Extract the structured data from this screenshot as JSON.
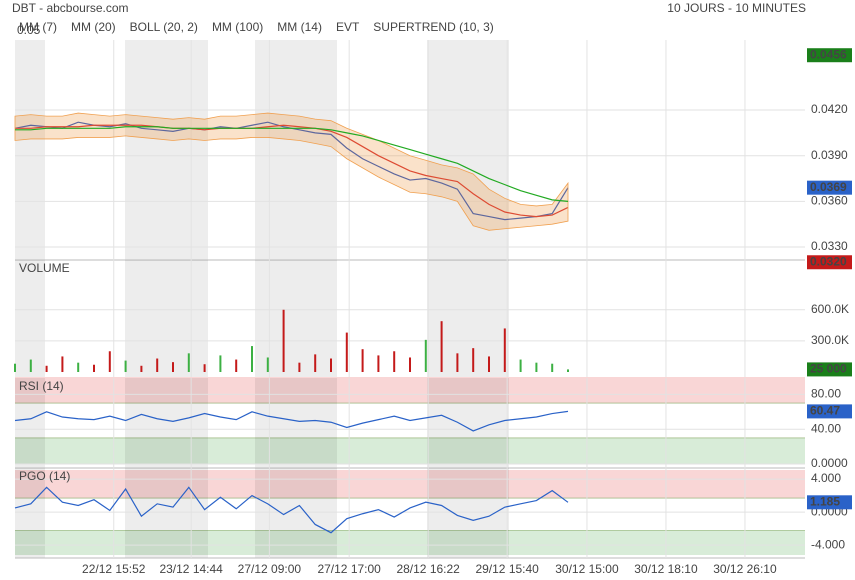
{
  "header": {
    "title": "DBT - abcbourse.com",
    "period": "10 JOURS - 10 MINUTES"
  },
  "chart_data": [
    {
      "type": "line",
      "corner_label": "0.05",
      "ylim": [
        0.03228,
        0.0466
      ],
      "yticks": [
        {
          "value": 0.033,
          "label": "0.0330"
        },
        {
          "value": 0.036,
          "label": "0.0360"
        },
        {
          "value": 0.039,
          "label": "0.0390"
        },
        {
          "value": 0.042,
          "label": "0.0420"
        }
      ],
      "badges": [
        {
          "value": 0.0456,
          "label": "0.0456",
          "color": "#1a7f1a"
        },
        {
          "value": 0.0369,
          "label": "0.0369",
          "color": "#2a62c8"
        },
        {
          "value": 0.032,
          "label": "0.0320",
          "color": "#c41a1a"
        }
      ],
      "series": [
        {
          "name": "MM (7)",
          "color": "#1f4fbf",
          "values": [
            0.0408,
            0.041,
            0.0409,
            0.0408,
            0.0412,
            0.041,
            0.0409,
            0.0411,
            0.0408,
            0.0407,
            0.0406,
            0.0408,
            0.0407,
            0.0409,
            0.0408,
            0.041,
            0.0412,
            0.0409,
            0.0407,
            0.0405,
            0.0404,
            0.0395,
            0.0388,
            0.0383,
            0.0378,
            0.0374,
            0.0375,
            0.0372,
            0.0368,
            0.0352,
            0.035,
            0.0348,
            0.0349,
            0.035,
            0.0352,
            0.0369
          ]
        },
        {
          "name": "MM (20)",
          "color": "#d62728",
          "values": [
            0.0408,
            0.0408,
            0.0409,
            0.0409,
            0.0409,
            0.041,
            0.041,
            0.041,
            0.041,
            0.0409,
            0.0408,
            0.0408,
            0.0407,
            0.0408,
            0.0408,
            0.0408,
            0.0409,
            0.041,
            0.0409,
            0.0408,
            0.0406,
            0.0402,
            0.0396,
            0.039,
            0.0385,
            0.038,
            0.0377,
            0.0375,
            0.0373,
            0.0365,
            0.0358,
            0.0353,
            0.0351,
            0.035,
            0.0351,
            0.0356
          ]
        },
        {
          "name": "BOLL (20, 2)",
          "color": "#f0a050",
          "upper": [
            0.0416,
            0.0417,
            0.0416,
            0.0416,
            0.0418,
            0.0417,
            0.0416,
            0.0417,
            0.0416,
            0.0415,
            0.0414,
            0.0415,
            0.0414,
            0.0416,
            0.0416,
            0.0417,
            0.0418,
            0.0417,
            0.0416,
            0.0414,
            0.0413,
            0.0408,
            0.0404,
            0.04,
            0.0395,
            0.039,
            0.0387,
            0.0384,
            0.0382,
            0.0378,
            0.0368,
            0.0362,
            0.0358,
            0.0357,
            0.0358,
            0.0372
          ],
          "lower": [
            0.04,
            0.0401,
            0.0401,
            0.0401,
            0.0402,
            0.0402,
            0.0402,
            0.0403,
            0.0402,
            0.0401,
            0.04,
            0.0401,
            0.04,
            0.0401,
            0.0401,
            0.0402,
            0.0402,
            0.0401,
            0.04,
            0.0398,
            0.0396,
            0.0388,
            0.0382,
            0.0376,
            0.0371,
            0.0366,
            0.0365,
            0.0363,
            0.036,
            0.0344,
            0.0341,
            0.0342,
            0.0343,
            0.0344,
            0.0345,
            0.0347
          ]
        },
        {
          "name": "MM (100)",
          "color": "#22aa22",
          "values": [
            0.0407,
            0.0407,
            0.0408,
            0.0408,
            0.0408,
            0.0408,
            0.0408,
            0.0409,
            0.0409,
            0.0409,
            0.0408,
            0.0408,
            0.0408,
            0.0408,
            0.0408,
            0.0408,
            0.0408,
            0.0408,
            0.0408,
            0.0408,
            0.0407,
            0.0405,
            0.0403,
            0.04,
            0.0397,
            0.0394,
            0.0391,
            0.0388,
            0.0385,
            0.038,
            0.0375,
            0.0371,
            0.0367,
            0.0364,
            0.0361,
            0.036
          ]
        },
        {
          "name": "MM (14)",
          "color": "#333333"
        },
        {
          "name": "EVT",
          "color": "#000000"
        },
        {
          "name": "SUPERTREND (10, 3)",
          "color": "#b22222"
        }
      ]
    },
    {
      "type": "bar",
      "title": "VOLUME",
      "ylim": [
        0,
        810000
      ],
      "yticks": [
        {
          "value": 300000,
          "label": "300.0K"
        },
        {
          "value": 600000,
          "label": "600.0K"
        }
      ],
      "badges": [
        {
          "value": 25000,
          "label": "25 000",
          "color": "#1a7f1a"
        }
      ],
      "series": [
        {
          "name": "VOLUME",
          "color": "#3cb043",
          "values": [
            80000,
            120000,
            60000,
            150000,
            90000,
            70000,
            200000,
            110000,
            60000,
            130000,
            95000,
            180000,
            75000,
            160000,
            120000,
            250000,
            140000,
            600000,
            90000,
            170000,
            130000,
            380000,
            220000,
            160000,
            200000,
            140000,
            310000,
            490000,
            180000,
            230000,
            150000,
            420000,
            120000,
            90000,
            80000,
            25000
          ]
        }
      ]
    },
    {
      "type": "line",
      "title": "RSI (14)",
      "ylim": [
        0,
        100
      ],
      "yticks": [
        {
          "value": 0,
          "label": "0.0000"
        },
        {
          "value": 40,
          "label": "40.00"
        },
        {
          "value": 80,
          "label": "80.00"
        }
      ],
      "zones": [
        {
          "from": 70,
          "to": 100,
          "color": "#f9d6d6"
        },
        {
          "from": 0,
          "to": 30,
          "color": "#d8ecd8"
        }
      ],
      "badges": [
        {
          "value": 60.47,
          "label": "60.47",
          "color": "#2a62c8"
        }
      ],
      "series": [
        {
          "name": "RSI (14)",
          "color": "#2a62c8",
          "values": [
            50,
            52,
            60,
            54,
            52,
            51,
            55,
            50,
            57,
            52,
            49,
            53,
            58,
            54,
            51,
            60,
            55,
            52,
            49,
            50,
            48,
            42,
            47,
            51,
            55,
            50,
            53,
            56,
            48,
            38,
            45,
            50,
            52,
            54,
            58,
            60.47
          ]
        }
      ]
    },
    {
      "type": "line",
      "title": "PGO (14)",
      "ylim": [
        -5.2,
        5.1
      ],
      "x": [
        0,
        0.2,
        0.4,
        0.6,
        0.8,
        1,
        1.2,
        1.4,
        1.6,
        1.8,
        2,
        2.2,
        2.4,
        2.6,
        2.8,
        3,
        3.2,
        3.4,
        3.6,
        3.8,
        4,
        4.2,
        4.4,
        4.6,
        4.8,
        5,
        5.2,
        5.4,
        5.6,
        5.8,
        6,
        6.2,
        6.4,
        6.6,
        6.8,
        7
      ],
      "xlim": [
        0,
        10
      ],
      "xticks": [
        {
          "value": 1.25,
          "label": "22/12 15:52"
        },
        {
          "value": 2.23,
          "label": "23/12 14:44"
        },
        {
          "value": 3.22,
          "label": "27/12 09:00"
        },
        {
          "value": 4.23,
          "label": "27/12 17:00"
        },
        {
          "value": 5.23,
          "label": "28/12 16:22"
        },
        {
          "value": 6.23,
          "label": "29/12 15:40"
        },
        {
          "value": 7.24,
          "label": "30/12 15:00"
        },
        {
          "value": 8.24,
          "label": "30/12 18:10"
        },
        {
          "value": 9.24,
          "label": "30/12 26:10"
        }
      ],
      "yticks": [
        {
          "value": -4,
          "label": "-4.000"
        },
        {
          "value": 0,
          "label": "0.0000"
        },
        {
          "value": 4,
          "label": "4.000"
        }
      ],
      "zones": [
        {
          "from": 1.7,
          "to": 5.1,
          "color": "#f9d6d6"
        },
        {
          "from": -5.2,
          "to": -2.2,
          "color": "#d8ecd8"
        }
      ],
      "badges": [
        {
          "value": 1.185,
          "label": "1.185",
          "color": "#2a62c8"
        }
      ],
      "series": [
        {
          "name": "PGO (14)",
          "color": "#2a62c8",
          "values": [
            0.5,
            1.0,
            3.0,
            1.2,
            0.8,
            1.5,
            0.2,
            2.8,
            -0.5,
            1.0,
            0.6,
            3.0,
            0.3,
            1.8,
            0.4,
            2.0,
            1.0,
            -0.3,
            0.8,
            -1.5,
            -2.5,
            -0.8,
            -0.2,
            0.3,
            -0.6,
            0.5,
            1.2,
            0.8,
            -0.4,
            -1.0,
            -0.5,
            0.6,
            1.0,
            1.4,
            2.6,
            1.185
          ]
        }
      ]
    }
  ]
}
